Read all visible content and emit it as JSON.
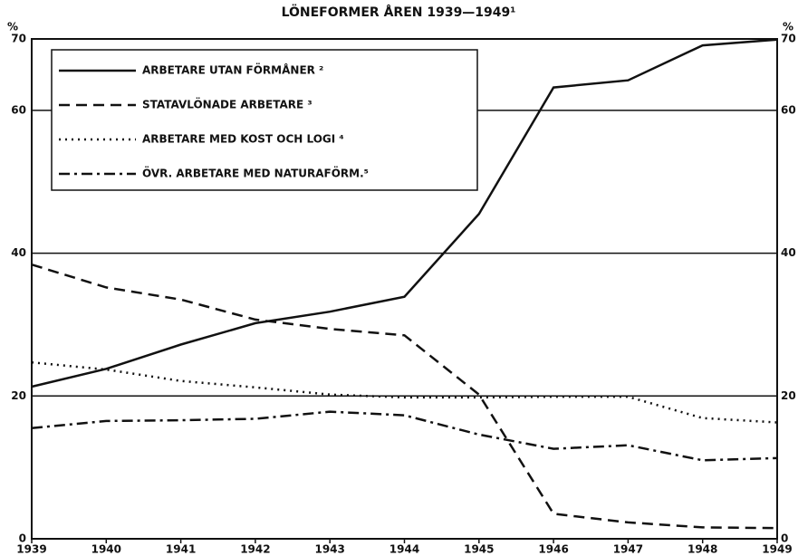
{
  "chart_data": {
    "type": "line",
    "title": "LÖNEFORMER ÅREN 1939—1949¹",
    "y_label": "%",
    "x": [
      1939,
      1940,
      1941,
      1942,
      1943,
      1944,
      1945,
      1946,
      1947,
      1948,
      1949
    ],
    "xlim": [
      1939,
      1949
    ],
    "xticks": [
      1939,
      1940,
      1941,
      1942,
      1943,
      1944,
      1945,
      1946,
      1947,
      1948,
      1949
    ],
    "ylim": [
      0,
      70
    ],
    "yticks": [
      0,
      20,
      40,
      60,
      70
    ],
    "grid": true,
    "legend": "upper left",
    "series": [
      {
        "name": "ARBETARE UTAN FÖRMÅNER ²",
        "color": "#111111",
        "values": [
          21.3,
          23.8,
          27.2,
          30.2,
          31.8,
          33.9,
          45.5,
          63.2,
          64.2,
          69.1,
          69.9
        ]
      },
      {
        "name": "STATAVLÖNADE ARBETARE ³",
        "color": "#111111",
        "values": [
          38.4,
          35.2,
          33.5,
          30.7,
          29.4,
          28.5,
          20.2,
          3.5,
          2.3,
          1.6,
          1.5
        ]
      },
      {
        "name": "ARBETARE MED KOST OCH LOGI ⁴",
        "color": "#111111",
        "values": [
          24.7,
          23.7,
          22.1,
          21.2,
          20.2,
          19.8,
          19.8,
          19.9,
          19.9,
          16.9,
          16.3
        ]
      },
      {
        "name": "ÖVR. ARBETARE MED NATURAFÖRM.⁵",
        "color": "#111111",
        "values": [
          15.5,
          16.5,
          16.6,
          16.8,
          17.8,
          17.3,
          14.6,
          12.6,
          13.1,
          11.0,
          11.3
        ]
      }
    ]
  }
}
